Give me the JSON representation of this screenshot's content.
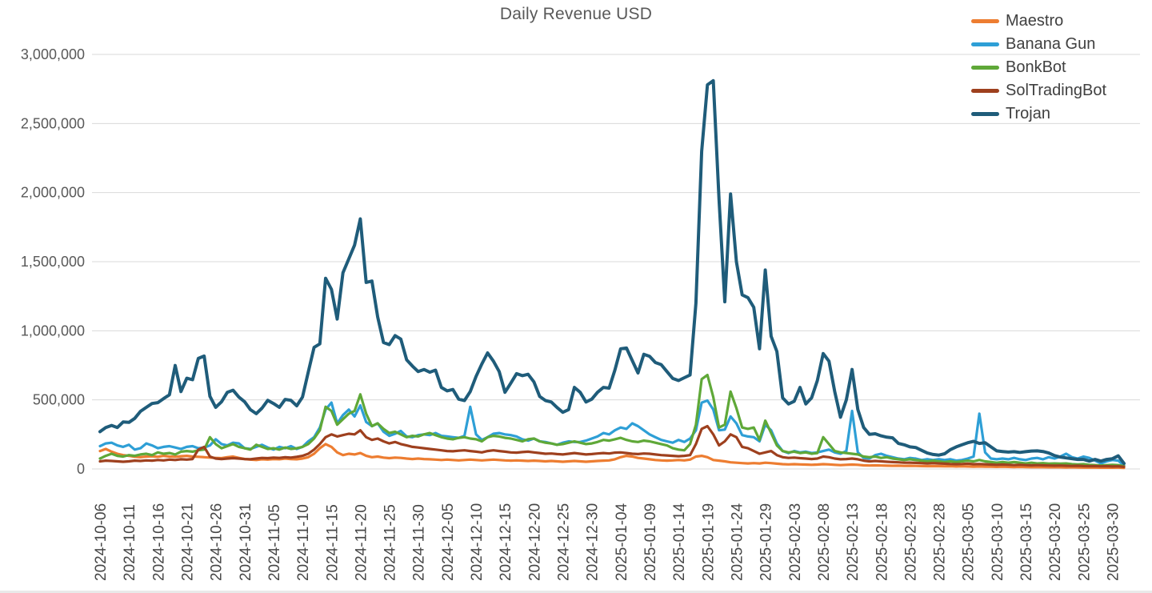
{
  "title": "Daily Revenue USD",
  "chart_data": {
    "type": "line",
    "unit": "USD",
    "frequency": "daily",
    "start_date": "2024-10-06",
    "end_date": "2025-04-01",
    "grid": "horizontal",
    "legend_position": "top-right",
    "y_axis": {
      "min": 0,
      "max": 3000000,
      "tick_step": 500000,
      "tick_labels": [
        "0",
        "500,000",
        "1,000,000",
        "1,500,000",
        "2,000,000",
        "2,500,000",
        "3,000,000"
      ]
    },
    "x_tick_labels": [
      "2024-10-06",
      "2024-10-11",
      "2024-10-16",
      "2024-10-21",
      "2024-10-26",
      "2024-10-31",
      "2024-11-05",
      "2024-11-10",
      "2024-11-15",
      "2024-11-20",
      "2024-11-25",
      "2024-11-30",
      "2024-12-05",
      "2024-12-10",
      "2024-12-15",
      "2024-12-20",
      "2024-12-25",
      "2024-12-30",
      "2025-01-04",
      "2025-01-09",
      "2025-01-14",
      "2025-01-19",
      "2025-01-24",
      "2025-01-29",
      "2025-02-03",
      "2025-02-08",
      "2025-02-13",
      "2025-02-18",
      "2025-02-23",
      "2025-02-28",
      "2025-03-05",
      "2025-03-10",
      "2025-03-15",
      "2025-03-20",
      "2025-03-25",
      "2025-03-30"
    ],
    "x_tick_every_days": 5,
    "series": [
      {
        "name": "Maestro",
        "color": "#ED7D31",
        "values": [
          130000,
          145000,
          125000,
          110000,
          100000,
          95000,
          88000,
          85000,
          90000,
          92000,
          88000,
          95000,
          90000,
          88000,
          92000,
          95000,
          90000,
          88000,
          85000,
          82000,
          80000,
          78000,
          85000,
          90000,
          80000,
          72000,
          68000,
          65000,
          70000,
          68000,
          72000,
          70000,
          75000,
          72000,
          70000,
          75000,
          85000,
          110000,
          150000,
          180000,
          160000,
          120000,
          100000,
          110000,
          105000,
          115000,
          95000,
          85000,
          90000,
          82000,
          78000,
          82000,
          80000,
          75000,
          72000,
          75000,
          72000,
          70000,
          68000,
          65000,
          68000,
          65000,
          62000,
          65000,
          68000,
          65000,
          62000,
          65000,
          68000,
          65000,
          62000,
          60000,
          62000,
          60000,
          58000,
          60000,
          58000,
          55000,
          58000,
          55000,
          52000,
          55000,
          58000,
          55000,
          52000,
          55000,
          58000,
          60000,
          62000,
          70000,
          85000,
          95000,
          90000,
          80000,
          75000,
          70000,
          65000,
          62000,
          60000,
          62000,
          65000,
          62000,
          68000,
          90000,
          95000,
          85000,
          65000,
          60000,
          55000,
          48000,
          45000,
          42000,
          40000,
          42000,
          40000,
          45000,
          42000,
          38000,
          35000,
          33000,
          35000,
          33000,
          32000,
          30000,
          32000,
          35000,
          33000,
          30000,
          28000,
          30000,
          32000,
          30000,
          26000,
          25000,
          26000,
          25000,
          24000,
          23000,
          24000,
          22000,
          23000,
          22000,
          21000,
          20000,
          21000,
          20000,
          19000,
          20000,
          18000,
          19000,
          18000,
          17000,
          18000,
          17000,
          16000,
          15000,
          16000,
          15000,
          14000,
          15000,
          14000,
          13000,
          14000,
          13000,
          12000,
          13000,
          12000,
          11000,
          12000,
          11000,
          10000,
          11000,
          10000,
          9000,
          10000,
          9000,
          10000,
          8000
        ]
      },
      {
        "name": "Banana Gun",
        "color": "#2E9FD6",
        "values": [
          165000,
          185000,
          190000,
          170000,
          160000,
          175000,
          140000,
          150000,
          185000,
          170000,
          150000,
          160000,
          165000,
          155000,
          145000,
          160000,
          165000,
          150000,
          155000,
          170000,
          215000,
          180000,
          170000,
          190000,
          185000,
          150000,
          145000,
          160000,
          175000,
          155000,
          140000,
          160000,
          150000,
          165000,
          145000,
          160000,
          200000,
          230000,
          300000,
          430000,
          480000,
          330000,
          390000,
          430000,
          380000,
          460000,
          340000,
          310000,
          330000,
          270000,
          240000,
          255000,
          275000,
          235000,
          230000,
          245000,
          250000,
          245000,
          260000,
          240000,
          235000,
          230000,
          225000,
          240000,
          450000,
          250000,
          210000,
          230000,
          255000,
          260000,
          250000,
          245000,
          235000,
          215000,
          205000,
          220000,
          200000,
          195000,
          185000,
          175000,
          190000,
          200000,
          195000,
          195000,
          205000,
          220000,
          235000,
          260000,
          250000,
          280000,
          300000,
          290000,
          330000,
          310000,
          280000,
          250000,
          230000,
          210000,
          200000,
          190000,
          210000,
          195000,
          220000,
          280000,
          480000,
          495000,
          430000,
          280000,
          285000,
          380000,
          330000,
          245000,
          235000,
          230000,
          200000,
          320000,
          280000,
          185000,
          130000,
          115000,
          130000,
          120000,
          125000,
          115000,
          120000,
          130000,
          140000,
          120000,
          110000,
          130000,
          420000,
          120000,
          80000,
          75000,
          100000,
          110000,
          95000,
          85000,
          75000,
          70000,
          80000,
          75000,
          65000,
          70000,
          65000,
          70000,
          65000,
          70000,
          60000,
          65000,
          75000,
          90000,
          400000,
          120000,
          75000,
          70000,
          75000,
          70000,
          80000,
          70000,
          65000,
          75000,
          80000,
          70000,
          85000,
          75000,
          90000,
          110000,
          85000,
          75000,
          90000,
          80000,
          60000,
          40000,
          55000,
          65000,
          60000,
          25000
        ]
      },
      {
        "name": "BonkBot",
        "color": "#5FA838",
        "values": [
          75000,
          95000,
          110000,
          95000,
          90000,
          100000,
          95000,
          105000,
          110000,
          100000,
          120000,
          110000,
          115000,
          105000,
          125000,
          130000,
          125000,
          135000,
          140000,
          230000,
          180000,
          150000,
          165000,
          180000,
          160000,
          150000,
          140000,
          175000,
          160000,
          145000,
          150000,
          140000,
          155000,
          145000,
          150000,
          160000,
          180000,
          220000,
          280000,
          450000,
          420000,
          320000,
          360000,
          400000,
          420000,
          540000,
          400000,
          310000,
          330000,
          290000,
          260000,
          270000,
          250000,
          230000,
          240000,
          235000,
          250000,
          260000,
          245000,
          230000,
          220000,
          215000,
          225000,
          230000,
          220000,
          215000,
          200000,
          230000,
          240000,
          235000,
          225000,
          220000,
          210000,
          200000,
          215000,
          220000,
          200000,
          190000,
          185000,
          175000,
          180000,
          190000,
          200000,
          190000,
          180000,
          185000,
          195000,
          210000,
          205000,
          215000,
          225000,
          210000,
          200000,
          195000,
          205000,
          200000,
          190000,
          180000,
          170000,
          150000,
          140000,
          135000,
          180000,
          320000,
          650000,
          680000,
          520000,
          300000,
          320000,
          560000,
          440000,
          300000,
          290000,
          300000,
          210000,
          350000,
          260000,
          170000,
          130000,
          120000,
          125000,
          115000,
          120000,
          110000,
          115000,
          230000,
          180000,
          130000,
          120000,
          115000,
          110000,
          105000,
          90000,
          85000,
          90000,
          80000,
          85000,
          75000,
          70000,
          65000,
          70000,
          65000,
          60000,
          55000,
          60000,
          55000,
          50000,
          55000,
          50000,
          55000,
          60000,
          55000,
          65000,
          55000,
          50000,
          45000,
          50000,
          45000,
          50000,
          45000,
          40000,
          45000,
          40000,
          42000,
          38000,
          40000,
          38000,
          40000,
          35000,
          33000,
          35000,
          30000,
          28000,
          25000,
          28000,
          30000,
          28000,
          20000
        ]
      },
      {
        "name": "SolTradingBot",
        "color": "#9E401E",
        "values": [
          55000,
          60000,
          58000,
          55000,
          52000,
          55000,
          60000,
          58000,
          62000,
          60000,
          65000,
          62000,
          68000,
          65000,
          70000,
          68000,
          72000,
          140000,
          160000,
          90000,
          75000,
          72000,
          75000,
          78000,
          75000,
          72000,
          70000,
          75000,
          80000,
          78000,
          82000,
          80000,
          85000,
          82000,
          88000,
          95000,
          110000,
          140000,
          180000,
          230000,
          250000,
          235000,
          245000,
          255000,
          250000,
          280000,
          230000,
          210000,
          220000,
          200000,
          185000,
          195000,
          180000,
          170000,
          160000,
          155000,
          150000,
          145000,
          140000,
          135000,
          130000,
          128000,
          132000,
          135000,
          130000,
          125000,
          120000,
          130000,
          135000,
          130000,
          125000,
          120000,
          118000,
          122000,
          125000,
          120000,
          115000,
          110000,
          112000,
          108000,
          105000,
          110000,
          115000,
          110000,
          105000,
          108000,
          112000,
          115000,
          112000,
          118000,
          120000,
          115000,
          110000,
          108000,
          112000,
          110000,
          105000,
          100000,
          98000,
          95000,
          92000,
          95000,
          100000,
          180000,
          290000,
          310000,
          250000,
          170000,
          200000,
          250000,
          230000,
          160000,
          150000,
          130000,
          110000,
          120000,
          130000,
          100000,
          85000,
          80000,
          82000,
          78000,
          75000,
          72000,
          75000,
          90000,
          85000,
          75000,
          70000,
          72000,
          75000,
          70000,
          60000,
          55000,
          58000,
          55000,
          52000,
          50000,
          48000,
          45000,
          46000,
          44000,
          42000,
          40000,
          42000,
          40000,
          38000,
          36000,
          35000,
          36000,
          38000,
          35000,
          36000,
          34000,
          32000,
          30000,
          32000,
          30000,
          28000,
          30000,
          28000,
          26000,
          28000,
          26000,
          25000,
          24000,
          25000,
          23000,
          22000,
          23000,
          21000,
          20000,
          21000,
          19000,
          20000,
          18000,
          19000,
          15000
        ]
      },
      {
        "name": "Trojan",
        "color": "#1F5C7A",
        "values": [
          270000,
          300000,
          315000,
          300000,
          340000,
          337000,
          366000,
          417000,
          446000,
          474000,
          480000,
          509000,
          537000,
          749000,
          560000,
          657000,
          646000,
          800000,
          817000,
          526000,
          446000,
          486000,
          554000,
          570000,
          520000,
          486000,
          429000,
          400000,
          440000,
          497000,
          474000,
          446000,
          503000,
          497000,
          457000,
          520000,
          700000,
          880000,
          905000,
          1380000,
          1300000,
          1085000,
          1420000,
          1520000,
          1620000,
          1810000,
          1350000,
          1360000,
          1100000,
          915000,
          900000,
          965000,
          940000,
          790000,
          745000,
          705000,
          720000,
          700000,
          715000,
          590000,
          565000,
          575000,
          505000,
          495000,
          560000,
          670000,
          760000,
          840000,
          780000,
          705000,
          555000,
          620000,
          690000,
          675000,
          685000,
          630000,
          525000,
          495000,
          485000,
          445000,
          410000,
          430000,
          590000,
          555000,
          485000,
          505000,
          555000,
          590000,
          585000,
          715000,
          870000,
          875000,
          785000,
          695000,
          830000,
          815000,
          770000,
          755000,
          705000,
          655000,
          640000,
          660000,
          680000,
          1200000,
          2300000,
          2780000,
          2810000,
          1950000,
          1210000,
          1990000,
          1500000,
          1260000,
          1240000,
          1170000,
          870000,
          1440000,
          960000,
          850000,
          515000,
          470000,
          490000,
          590000,
          470000,
          515000,
          640000,
          835000,
          780000,
          560000,
          375000,
          500000,
          720000,
          430000,
          300000,
          250000,
          255000,
          240000,
          230000,
          225000,
          185000,
          175000,
          160000,
          155000,
          135000,
          115000,
          105000,
          100000,
          110000,
          140000,
          160000,
          175000,
          190000,
          200000,
          185000,
          190000,
          160000,
          131000,
          126000,
          122000,
          125000,
          120000,
          125000,
          130000,
          131000,
          126000,
          115000,
          97000,
          86000,
          80000,
          74000,
          69000,
          69000,
          57000,
          69000,
          57000,
          69000,
          74000,
          95000,
          40000
        ]
      }
    ]
  },
  "legend": {
    "items": [
      "Maestro",
      "Banana Gun",
      "BonkBot",
      "SolTradingBot",
      "Trojan"
    ]
  }
}
